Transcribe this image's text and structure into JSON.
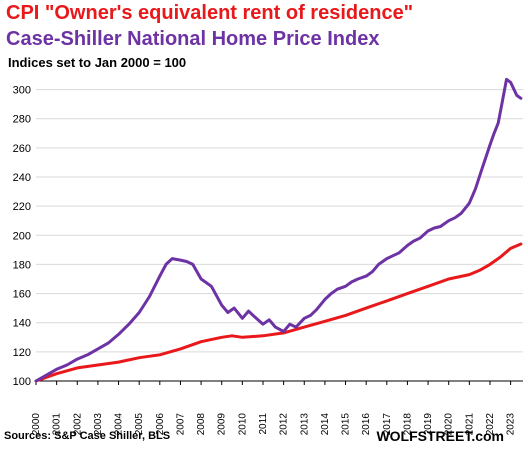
{
  "header": {
    "title_line1": "CPI \"Owner's equivalent rent of residence\"",
    "title_line2": "Case-Shiller National Home Price Index",
    "subtitle": "Indices set to Jan 2000 = 100"
  },
  "footer": {
    "source": "Sources: S&P Case Shiller, BLS",
    "brand": "WOLFSTREET.com"
  },
  "colors": {
    "oer": "#e8181b",
    "case_shiller": "#6d32a4",
    "grid": "#d9d9d9"
  },
  "chart_data": {
    "type": "line",
    "title": "CPI \"Owner's equivalent rent of residence\" / Case-Shiller National Home Price Index",
    "subtitle": "Indices set to Jan 2000 = 100",
    "xlabel": "",
    "ylabel": "",
    "ylim": [
      100,
      310
    ],
    "xlim": [
      2000,
      2023.6
    ],
    "yticks": [
      100,
      120,
      140,
      160,
      180,
      200,
      220,
      240,
      260,
      280,
      300
    ],
    "xticks": [
      "2000",
      "2001",
      "2002",
      "2003",
      "2004",
      "2005",
      "2006",
      "2007",
      "2008",
      "2009",
      "2010",
      "2011",
      "2012",
      "2013",
      "2014",
      "2015",
      "2016",
      "2017",
      "2018",
      "2019",
      "2020",
      "2021",
      "2022",
      "2023"
    ],
    "grid": true,
    "legend": "none (series identified by colored title lines)",
    "series": [
      {
        "name": "CPI \"Owner's equivalent rent of residence\"",
        "color": "#e8181b",
        "x": [
          2000,
          2001,
          2002,
          2003,
          2004,
          2005,
          2006,
          2007,
          2008,
          2009,
          2009.5,
          2010,
          2011,
          2012,
          2013,
          2014,
          2015,
          2016,
          2017,
          2018,
          2019,
          2020,
          2021,
          2021.5,
          2022,
          2022.5,
          2023,
          2023.5
        ],
        "y": [
          100,
          105,
          109,
          111,
          113,
          116,
          118,
          122,
          127,
          130,
          131,
          130,
          131,
          133,
          137,
          141,
          145,
          150,
          155,
          160,
          165,
          170,
          173,
          176,
          180,
          185,
          191,
          194
        ]
      },
      {
        "name": "Case-Shiller National Home Price Index",
        "color": "#6d32a4",
        "x": [
          2000,
          2000.5,
          2001,
          2001.5,
          2002,
          2002.5,
          2003,
          2003.5,
          2004,
          2004.5,
          2005,
          2005.5,
          2006,
          2006.3,
          2006.6,
          2007,
          2007.3,
          2007.6,
          2008,
          2008.5,
          2009,
          2009.3,
          2009.6,
          2010,
          2010.3,
          2010.6,
          2011,
          2011.3,
          2011.6,
          2012,
          2012.3,
          2012.6,
          2013,
          2013.3,
          2013.6,
          2014,
          2014.3,
          2014.6,
          2015,
          2015.3,
          2015.6,
          2016,
          2016.3,
          2016.6,
          2017,
          2017.3,
          2017.6,
          2018,
          2018.3,
          2018.6,
          2019,
          2019.3,
          2019.6,
          2020,
          2020.3,
          2020.6,
          2021,
          2021.3,
          2021.6,
          2022,
          2022.2,
          2022.4,
          2022.6,
          2022.8,
          2023,
          2023.3,
          2023.5
        ],
        "y": [
          100,
          104,
          108,
          111,
          115,
          118,
          122,
          126,
          132,
          139,
          147,
          158,
          172,
          180,
          184,
          183,
          182,
          180,
          170,
          165,
          152,
          147,
          150,
          143,
          148,
          144,
          139,
          142,
          137,
          134,
          139,
          137,
          143,
          145,
          149,
          156,
          160,
          163,
          165,
          168,
          170,
          172,
          175,
          180,
          184,
          186,
          188,
          193,
          196,
          198,
          203,
          205,
          206,
          210,
          212,
          215,
          222,
          232,
          245,
          262,
          270,
          277,
          292,
          307,
          305,
          296,
          294
        ]
      }
    ]
  }
}
